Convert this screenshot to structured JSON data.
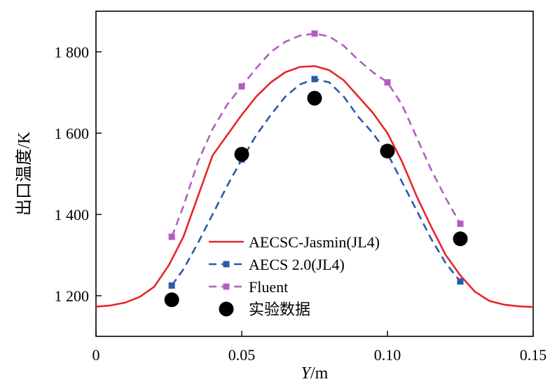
{
  "chart_data": {
    "type": "line",
    "xlabel": "Y/m",
    "ylabel": "出口温度/K",
    "xlim": [
      0,
      0.15
    ],
    "ylim": [
      1100,
      1900
    ],
    "x_ticks": [
      {
        "value": 0,
        "label": "0"
      },
      {
        "value": 0.05,
        "label": "0.05"
      },
      {
        "value": 0.1,
        "label": "0.10"
      },
      {
        "value": 0.15,
        "label": "0.15"
      }
    ],
    "y_ticks": [
      {
        "value": 1200,
        "label": "1 200"
      },
      {
        "value": 1400,
        "label": "1 400"
      },
      {
        "value": 1600,
        "label": "1 600"
      },
      {
        "value": 1800,
        "label": "1 800"
      }
    ],
    "legend_position": "bottom-left",
    "series": [
      {
        "name": "AECSC-Jasmin(JL4)",
        "style": "solid",
        "marker": "none",
        "color": "#e8262b",
        "x": [
          0,
          0.005,
          0.01,
          0.015,
          0.02,
          0.025,
          0.03,
          0.035,
          0.04,
          0.045,
          0.05,
          0.055,
          0.06,
          0.065,
          0.07,
          0.075,
          0.08,
          0.085,
          0.09,
          0.095,
          0.1,
          0.105,
          0.11,
          0.115,
          0.12,
          0.125,
          0.13,
          0.135,
          0.14,
          0.145,
          0.15
        ],
        "y": [
          1173,
          1176,
          1183,
          1197,
          1222,
          1275,
          1345,
          1445,
          1545,
          1595,
          1645,
          1690,
          1725,
          1750,
          1763,
          1765,
          1755,
          1730,
          1690,
          1650,
          1600,
          1530,
          1445,
          1370,
          1300,
          1250,
          1210,
          1187,
          1178,
          1174,
          1172
        ]
      },
      {
        "name": "AECS 2.0(JL4)",
        "style": "dashed",
        "marker": "square",
        "color": "#2c5aa8",
        "x": [
          0.026,
          0.03,
          0.035,
          0.04,
          0.045,
          0.05,
          0.055,
          0.06,
          0.065,
          0.07,
          0.075,
          0.08,
          0.085,
          0.09,
          0.095,
          0.1,
          0.105,
          0.11,
          0.115,
          0.12,
          0.125
        ],
        "y": [
          1225,
          1265,
          1330,
          1400,
          1470,
          1535,
          1595,
          1645,
          1690,
          1720,
          1733,
          1725,
          1690,
          1640,
          1600,
          1550,
          1480,
          1410,
          1340,
          1280,
          1235
        ],
        "marker_x": [
          0.026,
          0.05,
          0.075,
          0.1,
          0.125
        ],
        "marker_y": [
          1225,
          1535,
          1733,
          1550,
          1235
        ]
      },
      {
        "name": "Fluent",
        "style": "dashed",
        "marker": "square",
        "color": "#b15fbf",
        "x": [
          0.026,
          0.03,
          0.035,
          0.04,
          0.045,
          0.05,
          0.055,
          0.06,
          0.065,
          0.07,
          0.075,
          0.08,
          0.085,
          0.09,
          0.095,
          0.1,
          0.105,
          0.11,
          0.115,
          0.12,
          0.125
        ],
        "y": [
          1345,
          1420,
          1530,
          1610,
          1670,
          1715,
          1760,
          1800,
          1825,
          1840,
          1845,
          1838,
          1815,
          1780,
          1750,
          1725,
          1670,
          1590,
          1510,
          1440,
          1377
        ],
        "marker_x": [
          0.026,
          0.05,
          0.075,
          0.1,
          0.125
        ],
        "marker_y": [
          1345,
          1715,
          1845,
          1725,
          1377
        ]
      },
      {
        "name": "实验数据",
        "style": "none",
        "marker": "circle",
        "color": "#000000",
        "x": [
          0.026,
          0.05,
          0.075,
          0.1,
          0.125
        ],
        "y": [
          1190,
          1548,
          1686,
          1556,
          1340
        ]
      }
    ]
  }
}
